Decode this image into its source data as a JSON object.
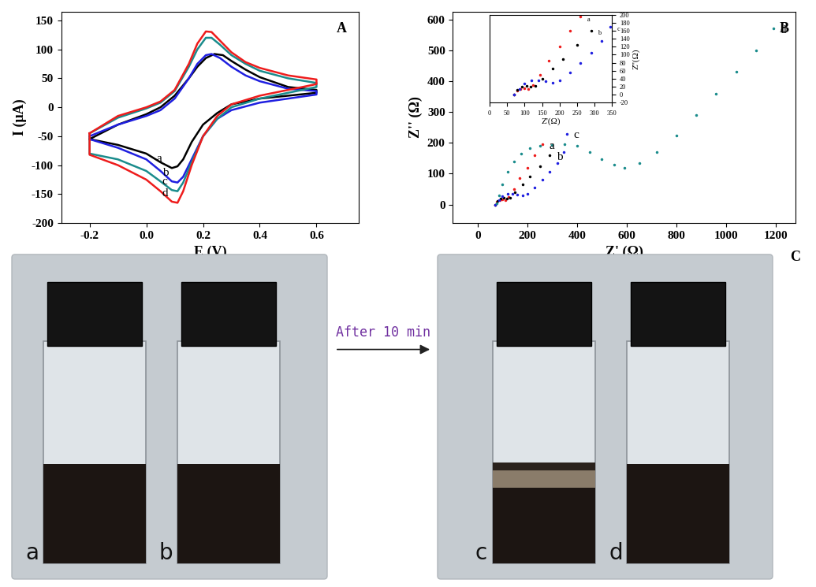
{
  "chart_data": [
    {
      "type": "line",
      "panel_label": "A",
      "x_label": "E (V)",
      "y_label": "I (μA)",
      "xlim": [
        -0.3,
        0.75
      ],
      "xticks": [
        -0.2,
        0.0,
        0.2,
        0.4,
        0.6
      ],
      "ylim": [
        -200,
        165
      ],
      "yticks": [
        -200,
        -150,
        -100,
        -50,
        0,
        50,
        100,
        150
      ],
      "series": [
        {
          "name": "a",
          "color": "#000000",
          "x": [
            -0.2,
            -0.1,
            0.0,
            0.05,
            0.1,
            0.15,
            0.18,
            0.21,
            0.24,
            0.27,
            0.3,
            0.35,
            0.4,
            0.5,
            0.6,
            0.6,
            0.5,
            0.4,
            0.3,
            0.25,
            0.2,
            0.16,
            0.13,
            0.11,
            0.09,
            0.05,
            0.0,
            -0.1,
            -0.2,
            -0.2
          ],
          "values": [
            -55,
            -30,
            -12,
            0,
            20,
            50,
            70,
            85,
            92,
            90,
            80,
            65,
            52,
            35,
            30,
            25,
            20,
            15,
            5,
            -10,
            -30,
            -60,
            -90,
            -102,
            -105,
            -95,
            -80,
            -65,
            -55,
            -55
          ]
        },
        {
          "name": "b",
          "color": "#1f1fe0",
          "x": [
            -0.2,
            -0.1,
            0.0,
            0.05,
            0.1,
            0.15,
            0.18,
            0.21,
            0.23,
            0.26,
            0.3,
            0.35,
            0.4,
            0.5,
            0.6,
            0.6,
            0.5,
            0.4,
            0.3,
            0.25,
            0.2,
            0.16,
            0.13,
            0.11,
            0.09,
            0.05,
            0.0,
            -0.1,
            -0.2,
            -0.2
          ],
          "values": [
            -50,
            -30,
            -15,
            -5,
            15,
            50,
            75,
            90,
            92,
            85,
            70,
            55,
            45,
            32,
            28,
            22,
            15,
            8,
            -5,
            -20,
            -50,
            -90,
            -120,
            -130,
            -128,
            -110,
            -90,
            -70,
            -55,
            -50
          ]
        },
        {
          "name": "c",
          "color": "#1a8c8c",
          "x": [
            -0.2,
            -0.1,
            0.0,
            0.05,
            0.1,
            0.15,
            0.18,
            0.21,
            0.23,
            0.26,
            0.3,
            0.35,
            0.4,
            0.5,
            0.6,
            0.6,
            0.5,
            0.4,
            0.3,
            0.25,
            0.2,
            0.16,
            0.13,
            0.11,
            0.09,
            0.05,
            0.0,
            -0.1,
            -0.2,
            -0.2
          ],
          "values": [
            -45,
            -18,
            -2,
            8,
            28,
            70,
            100,
            120,
            120,
            108,
            90,
            75,
            63,
            50,
            42,
            35,
            25,
            15,
            0,
            -20,
            -50,
            -95,
            -130,
            -145,
            -143,
            -128,
            -110,
            -90,
            -80,
            -45
          ]
        },
        {
          "name": "d",
          "color": "#ee1c1c",
          "x": [
            -0.2,
            -0.1,
            0.0,
            0.05,
            0.1,
            0.15,
            0.18,
            0.21,
            0.23,
            0.26,
            0.3,
            0.35,
            0.4,
            0.5,
            0.6,
            0.6,
            0.5,
            0.4,
            0.3,
            0.25,
            0.2,
            0.16,
            0.13,
            0.11,
            0.09,
            0.05,
            0.0,
            -0.1,
            -0.2,
            -0.2
          ],
          "values": [
            -45,
            -15,
            0,
            10,
            30,
            75,
            110,
            131,
            130,
            115,
            95,
            78,
            68,
            55,
            48,
            40,
            30,
            20,
            5,
            -15,
            -50,
            -100,
            -145,
            -165,
            -163,
            -145,
            -125,
            -100,
            -82,
            -45
          ]
        }
      ]
    },
    {
      "type": "scatter",
      "panel_label": "B",
      "x_label": "Z' (Ω)",
      "y_label": "Z'' (Ω)",
      "xlim": [
        -100,
        1280
      ],
      "xticks": [
        0,
        200,
        400,
        600,
        800,
        1000,
        1200
      ],
      "ylim": [
        -60,
        625
      ],
      "yticks": [
        0,
        100,
        200,
        300,
        400,
        500,
        600
      ],
      "series": [
        {
          "name": "a",
          "color": "#ee1c1c",
          "marker": "dot",
          "x": [
            70,
            78,
            88,
            100,
            110,
            125,
            145,
            170,
            200,
            230,
            260
          ],
          "values": [
            0,
            10,
            15,
            16,
            15,
            25,
            50,
            85,
            120,
            160,
            195
          ]
        },
        {
          "name": "b",
          "color": "#000000",
          "marker": "dot",
          "x": [
            70,
            80,
            92,
            105,
            118,
            130,
            150,
            180,
            210,
            250,
            290
          ],
          "values": [
            0,
            12,
            20,
            22,
            20,
            22,
            40,
            65,
            90,
            125,
            160
          ]
        },
        {
          "name": "c",
          "color": "#1f1fe0",
          "marker": "dot",
          "x": [
            70,
            85,
            100,
            120,
            140,
            160,
            180,
            200,
            230,
            260,
            290,
            320,
            345,
            360
          ],
          "values": [
            0,
            15,
            28,
            35,
            36,
            33,
            30,
            35,
            55,
            80,
            105,
            135,
            170,
            230
          ]
        },
        {
          "name": "d",
          "color": "#1a8c8c",
          "marker": "dot",
          "x": [
            75,
            85,
            100,
            120,
            145,
            175,
            210,
            250,
            300,
            350,
            400,
            450,
            500,
            550,
            590,
            650,
            720,
            800,
            880,
            960,
            1040,
            1120,
            1190
          ],
          "values": [
            5,
            30,
            65,
            105,
            140,
            165,
            182,
            190,
            192,
            195,
            190,
            170,
            148,
            128,
            120,
            135,
            170,
            225,
            290,
            360,
            430,
            500,
            570
          ]
        }
      ]
    },
    {
      "type": "scatter",
      "x_label": "Z'(Ω)",
      "y_label": "Z''(Ω)",
      "xlim": [
        0,
        350
      ],
      "xticks": [
        0,
        50,
        100,
        150,
        200,
        250,
        300,
        350
      ],
      "ylim": [
        -20,
        200
      ],
      "yticks": [
        -20,
        0,
        20,
        40,
        60,
        80,
        100,
        120,
        140,
        160,
        180,
        200
      ],
      "series": [
        {
          "name": "a",
          "color": "#ee1c1c",
          "marker": "dot",
          "x": [
            70,
            78,
            88,
            100,
            110,
            125,
            145,
            170,
            200,
            230,
            260
          ],
          "values": [
            0,
            10,
            15,
            16,
            15,
            25,
            50,
            85,
            120,
            160,
            195
          ]
        },
        {
          "name": "b",
          "color": "#000000",
          "marker": "dot",
          "x": [
            70,
            80,
            92,
            105,
            118,
            130,
            150,
            180,
            210,
            250,
            290
          ],
          "values": [
            0,
            12,
            20,
            22,
            20,
            22,
            40,
            65,
            90,
            125,
            160
          ]
        },
        {
          "name": "c",
          "color": "#1f1fe0",
          "marker": "dot",
          "x": [
            70,
            85,
            100,
            120,
            140,
            160,
            180,
            200,
            230,
            260,
            290,
            320,
            345
          ],
          "values": [
            0,
            15,
            28,
            35,
            36,
            33,
            30,
            35,
            55,
            80,
            105,
            135,
            170
          ]
        }
      ]
    }
  ],
  "photos": {
    "panel_label": "C",
    "vials": [
      "a",
      "b",
      "c",
      "d"
    ],
    "arrow_text": "After 10 min"
  }
}
